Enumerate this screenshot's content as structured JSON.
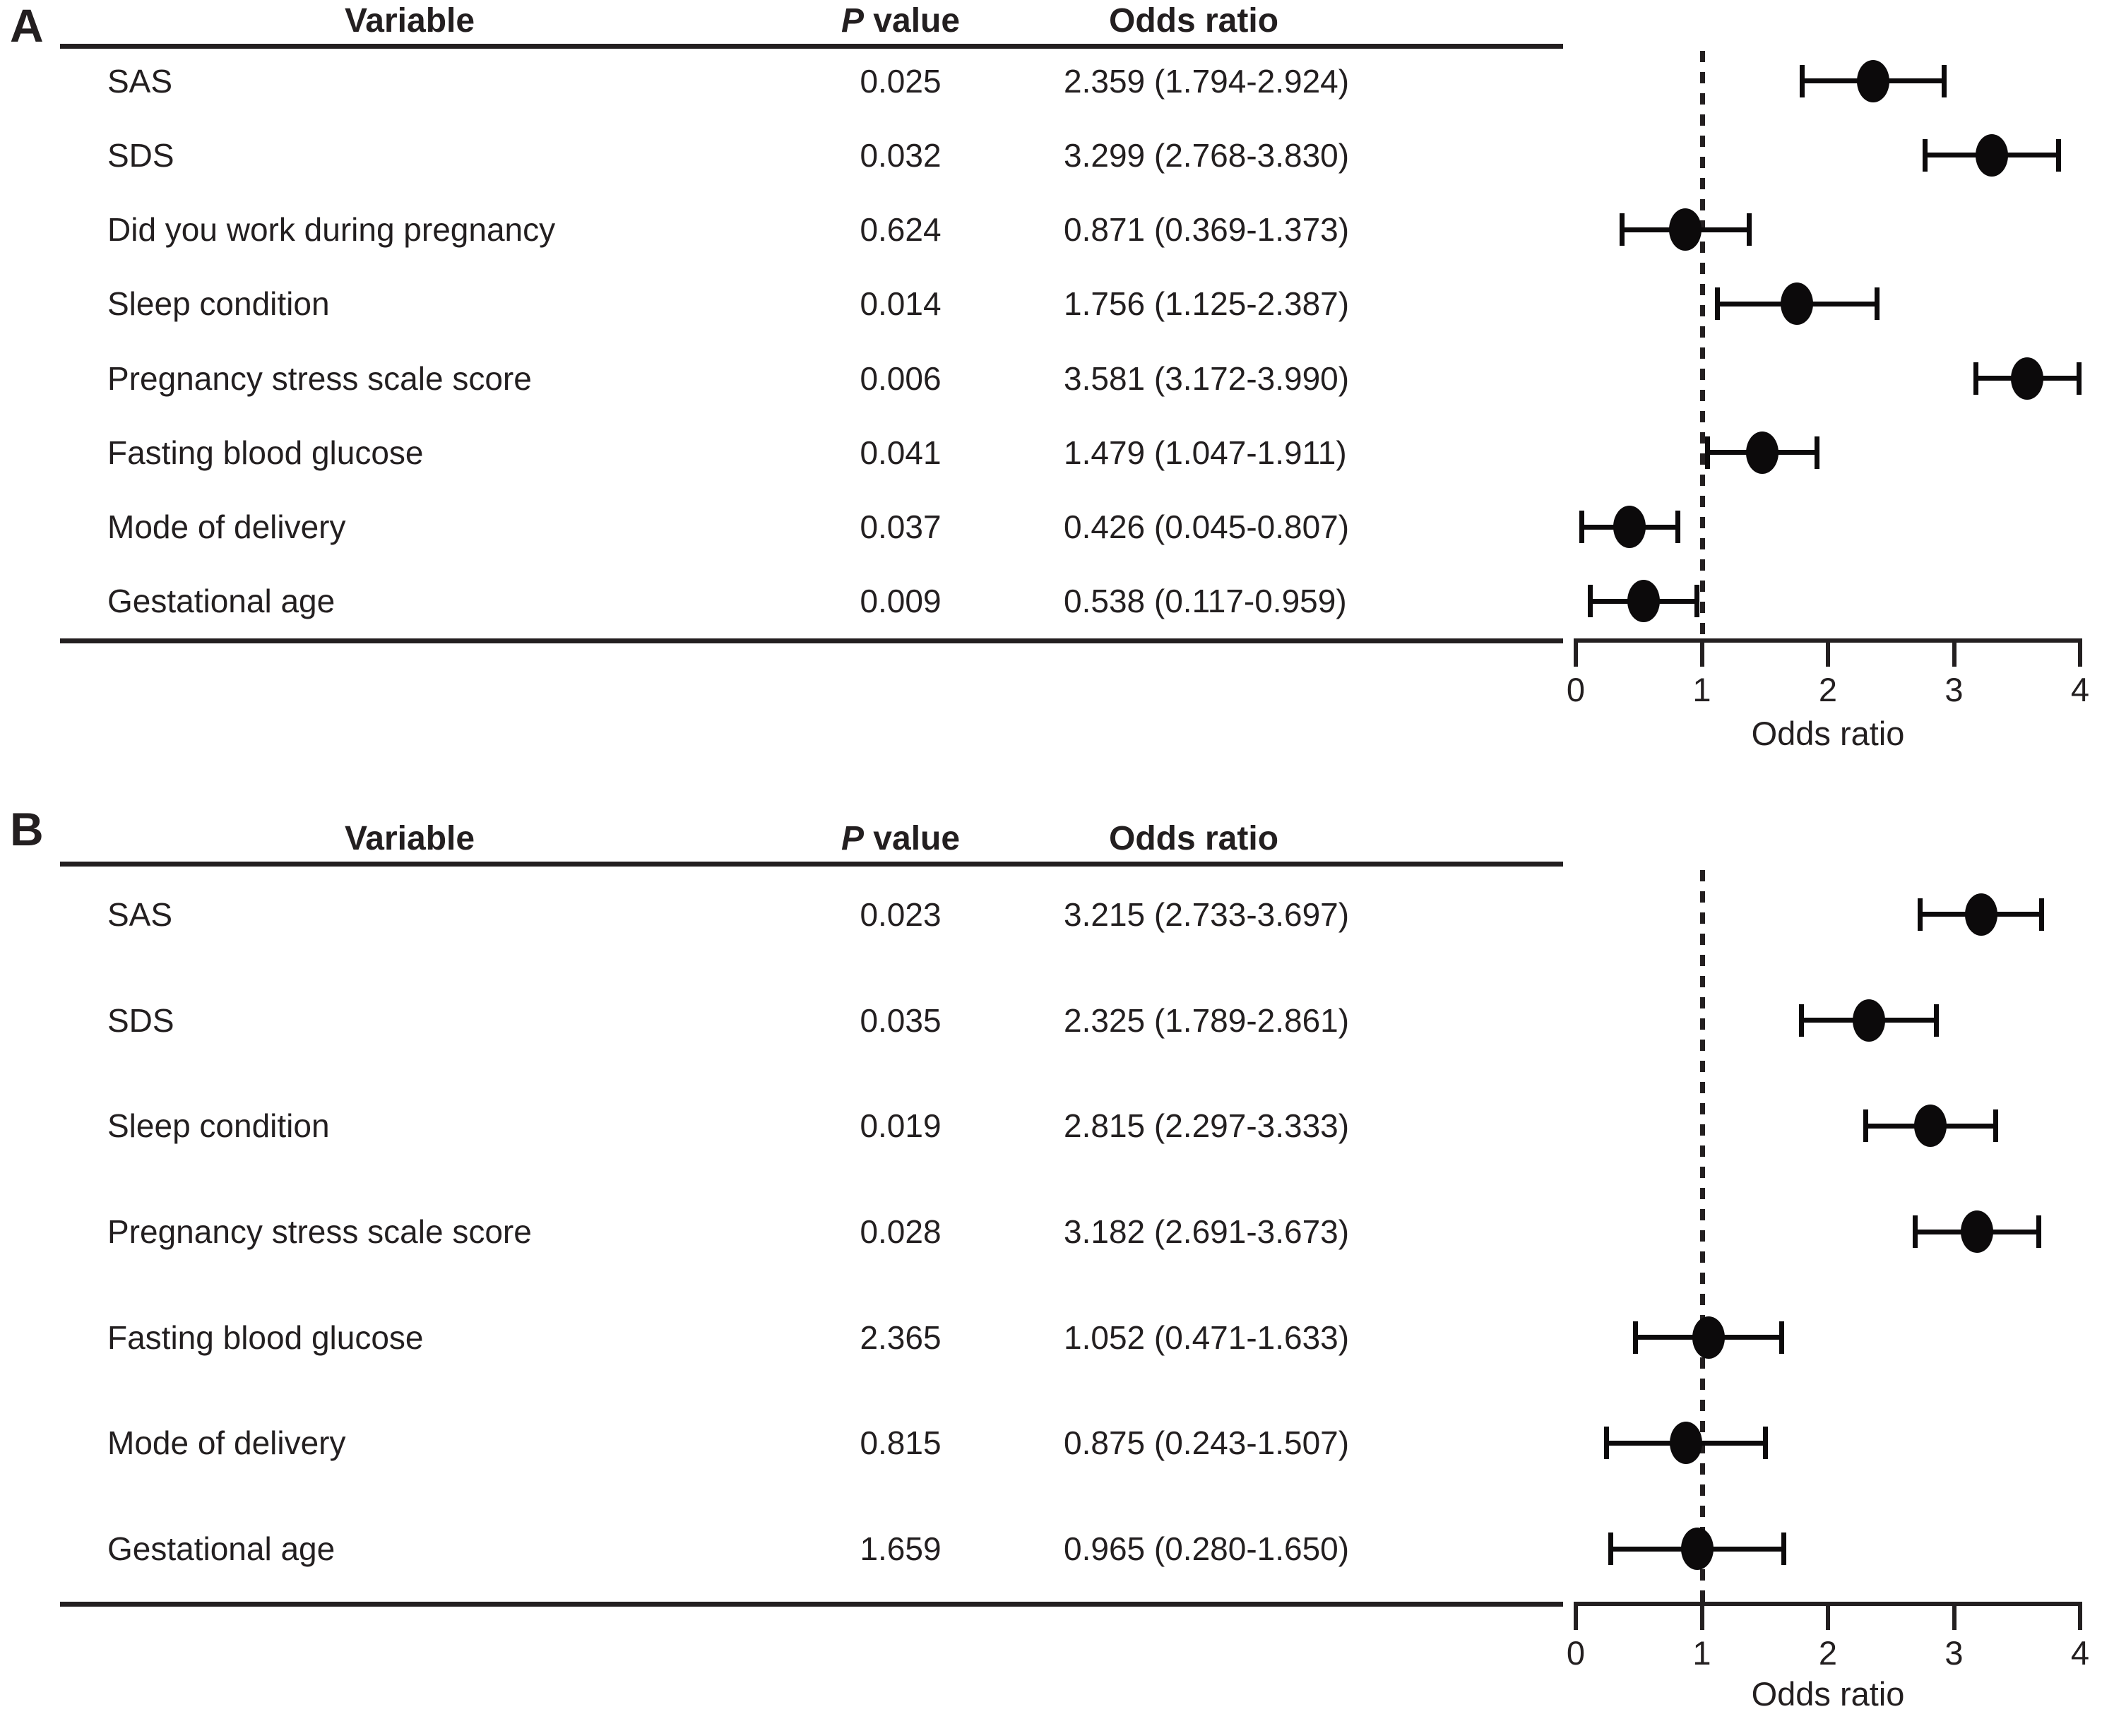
{
  "figure": {
    "panels": [
      {
        "label": "A",
        "columns": {
          "variable": "Variable",
          "p_italic": "P",
          "p_rest": " value",
          "odds": "Odds ratio"
        },
        "axis": {
          "label": "Odds ratio",
          "ticks": [
            "0",
            "1",
            "2",
            "3",
            "4"
          ],
          "min": 0,
          "max": 4,
          "reference": 1
        },
        "rows": [
          {
            "variable": "SAS",
            "p": "0.025",
            "or_text": "2.359 (1.794-2.924)",
            "or": 2.359,
            "lo": 1.794,
            "hi": 2.924
          },
          {
            "variable": "SDS",
            "p": "0.032",
            "or_text": "3.299 (2.768-3.830)",
            "or": 3.299,
            "lo": 2.768,
            "hi": 3.83
          },
          {
            "variable": "Did you work during pregnancy",
            "p": "0.624",
            "or_text": "0.871 (0.369-1.373)",
            "or": 0.871,
            "lo": 0.369,
            "hi": 1.373
          },
          {
            "variable": "Sleep condition",
            "p": "0.014",
            "or_text": "1.756 (1.125-2.387)",
            "or": 1.756,
            "lo": 1.125,
            "hi": 2.387
          },
          {
            "variable": "Pregnancy stress scale score",
            "p": "0.006",
            "or_text": "3.581 (3.172-3.990)",
            "or": 3.581,
            "lo": 3.172,
            "hi": 3.99
          },
          {
            "variable": "Fasting blood glucose",
            "p": "0.041",
            "or_text": "1.479 (1.047-1.911)",
            "or": 1.479,
            "lo": 1.047,
            "hi": 1.911
          },
          {
            "variable": "Mode of delivery",
            "p": "0.037",
            "or_text": "0.426 (0.045-0.807)",
            "or": 0.426,
            "lo": 0.045,
            "hi": 0.807
          },
          {
            "variable": "Gestational age",
            "p": "0.009",
            "or_text": "0.538 (0.117-0.959)",
            "or": 0.538,
            "lo": 0.117,
            "hi": 0.959
          }
        ]
      },
      {
        "label": "B",
        "columns": {
          "variable": "Variable",
          "p_italic": "P",
          "p_rest": " value",
          "odds": "Odds ratio"
        },
        "axis": {
          "label": "Odds ratio",
          "ticks": [
            "0",
            "1",
            "2",
            "3",
            "4"
          ],
          "min": 0,
          "max": 4,
          "reference": 1
        },
        "rows": [
          {
            "variable": "SAS",
            "p": "0.023",
            "or_text": "3.215 (2.733-3.697)",
            "or": 3.215,
            "lo": 2.733,
            "hi": 3.697
          },
          {
            "variable": "SDS",
            "p": "0.035",
            "or_text": "2.325 (1.789-2.861)",
            "or": 2.325,
            "lo": 1.789,
            "hi": 2.861
          },
          {
            "variable": "Sleep condition",
            "p": "0.019",
            "or_text": "2.815 (2.297-3.333)",
            "or": 2.815,
            "lo": 2.297,
            "hi": 3.333
          },
          {
            "variable": "Pregnancy stress scale score",
            "p": "0.028",
            "or_text": "3.182 (2.691-3.673)",
            "or": 3.182,
            "lo": 2.691,
            "hi": 3.673
          },
          {
            "variable": "Fasting blood glucose",
            "p": "2.365",
            "or_text": "1.052 (0.471-1.633)",
            "or": 1.052,
            "lo": 0.471,
            "hi": 1.633
          },
          {
            "variable": "Mode of delivery",
            "p": "0.815",
            "or_text": "0.875 (0.243-1.507)",
            "or": 0.875,
            "lo": 0.243,
            "hi": 1.507
          },
          {
            "variable": "Gestational age",
            "p": "1.659",
            "or_text": "0.965 (0.280-1.650)",
            "or": 0.965,
            "lo": 0.28,
            "hi": 1.65
          }
        ]
      }
    ]
  },
  "chart_data": [
    {
      "type": "scatter",
      "subtype": "forest-plot",
      "title": "A",
      "xlabel": "Odds ratio",
      "xlim": [
        0,
        4
      ],
      "x_ticks": [
        0,
        1,
        2,
        3,
        4
      ],
      "reference_line_x": 1,
      "categories": [
        "SAS",
        "SDS",
        "Did you work during pregnancy",
        "Sleep condition",
        "Pregnancy stress scale score",
        "Fasting blood glucose",
        "Mode of delivery",
        "Gestational age"
      ],
      "series": [
        {
          "name": "Odds ratio (95% CI)",
          "values": [
            2.359,
            3.299,
            0.871,
            1.756,
            3.581,
            1.479,
            0.426,
            0.538
          ],
          "ci_low": [
            1.794,
            2.768,
            0.369,
            1.125,
            3.172,
            1.047,
            0.045,
            0.117
          ],
          "ci_high": [
            2.924,
            3.83,
            1.373,
            2.387,
            3.99,
            1.911,
            0.807,
            0.959
          ],
          "p_values": [
            0.025,
            0.032,
            0.624,
            0.014,
            0.006,
            0.041,
            0.037,
            0.009
          ]
        }
      ]
    },
    {
      "type": "scatter",
      "subtype": "forest-plot",
      "title": "B",
      "xlabel": "Odds ratio",
      "xlim": [
        0,
        4
      ],
      "x_ticks": [
        0,
        1,
        2,
        3,
        4
      ],
      "reference_line_x": 1,
      "categories": [
        "SAS",
        "SDS",
        "Sleep condition",
        "Pregnancy stress scale score",
        "Fasting blood glucose",
        "Mode of delivery",
        "Gestational age"
      ],
      "series": [
        {
          "name": "Odds ratio (95% CI)",
          "values": [
            3.215,
            2.325,
            2.815,
            3.182,
            1.052,
            0.875,
            0.965
          ],
          "ci_low": [
            2.733,
            1.789,
            2.297,
            2.691,
            0.471,
            0.243,
            0.28
          ],
          "ci_high": [
            3.697,
            2.861,
            3.333,
            3.673,
            1.633,
            1.507,
            1.65
          ],
          "p_values": [
            0.023,
            0.035,
            0.019,
            0.028,
            2.365,
            0.815,
            1.659
          ]
        }
      ]
    }
  ]
}
